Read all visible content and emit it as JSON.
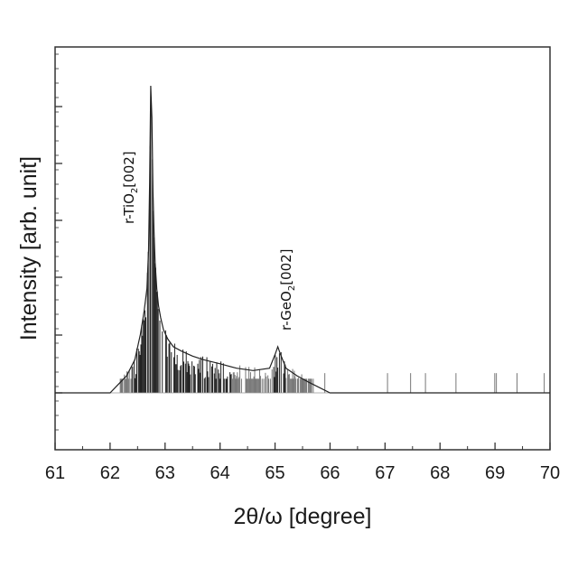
{
  "chart_data": {
    "type": "line",
    "title": "",
    "xlabel": "2θ/ω [degree]",
    "ylabel": "Intensity [arb. unit]",
    "xlim": [
      61,
      70
    ],
    "xticks": [
      "61",
      "62",
      "63",
      "64",
      "65",
      "66",
      "67",
      "68",
      "69",
      "70"
    ],
    "y_scale": "log",
    "y_tick_labels_shown": false,
    "grid": false,
    "legend": "none",
    "line_color": "#222222",
    "annotations": [
      {
        "id": "tio2",
        "prefix": "r-TiO",
        "sub": "2",
        "suffix": "[002]",
        "x": 62.35
      },
      {
        "id": "geo2",
        "prefix": "r-GeO",
        "sub": "2",
        "suffix": "[002]",
        "x": 65.05
      }
    ],
    "series": [
      {
        "x": [
          61.0,
          62.0,
          62.3,
          62.45,
          62.55,
          62.62,
          62.67,
          62.7,
          62.72,
          62.74,
          62.76,
          62.78,
          62.8,
          62.82,
          62.85,
          62.88,
          62.92,
          62.97,
          63.05,
          63.15,
          63.3,
          63.5,
          63.7,
          64.0,
          64.3,
          64.6,
          64.9,
          65.0,
          65.05,
          65.1,
          65.2,
          65.4,
          65.6,
          66.0,
          67.0,
          68.0,
          69.0,
          70.0
        ],
        "y": [
          1,
          1,
          1.5,
          2.2,
          4,
          7,
          12,
          30,
          150,
          1500,
          700,
          120,
          45,
          22,
          12,
          8,
          6,
          4.5,
          3.6,
          3.0,
          2.7,
          2.4,
          2.2,
          2.0,
          1.8,
          1.7,
          1.8,
          2.5,
          3,
          2.5,
          1.8,
          1.5,
          1.3,
          1.0,
          1.0,
          1.0,
          1.0,
          1.0
        ]
      }
    ]
  }
}
